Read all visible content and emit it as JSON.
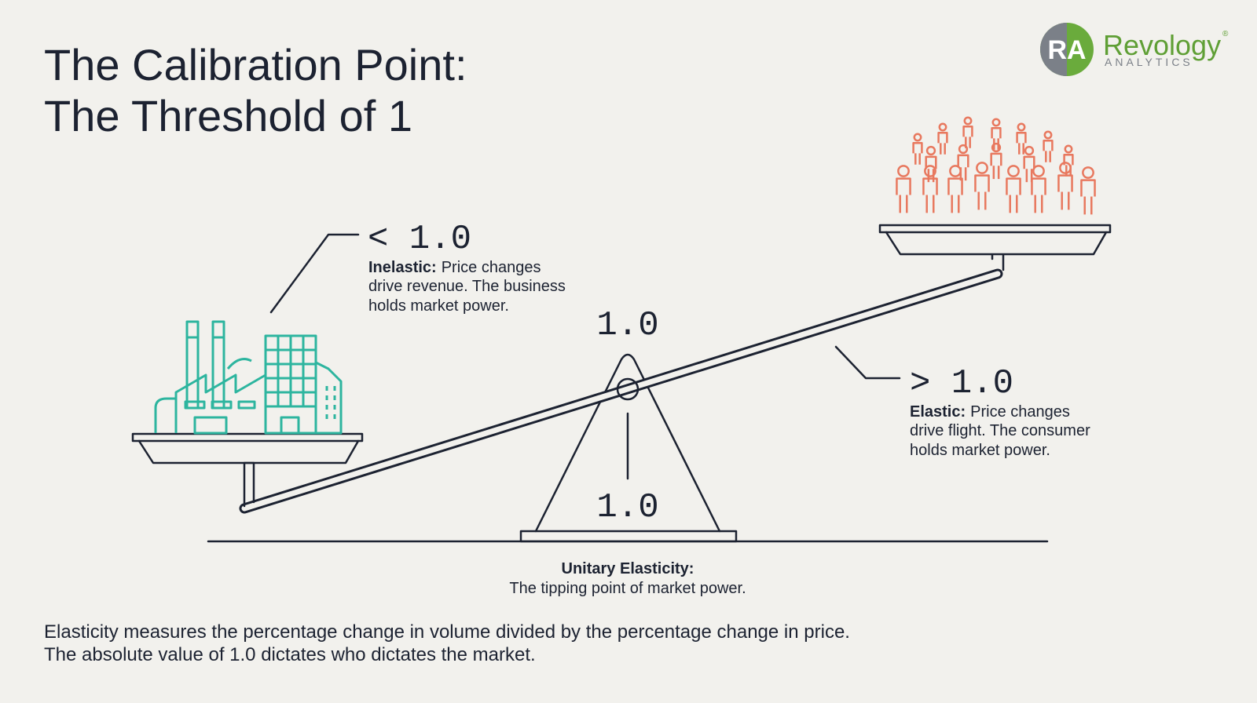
{
  "header": {
    "title_lines": [
      "The Calibration Point:",
      "The Threshold of 1"
    ]
  },
  "logo": {
    "monogram": "RA",
    "name": "Revology",
    "registered": "®",
    "tagline": "ANALYTICS"
  },
  "inelastic": {
    "value": "< 1.0",
    "term": "Inelastic:",
    "description_lines": [
      "Price changes",
      "drive revenue. The business",
      "holds market power."
    ]
  },
  "fulcrum": {
    "top_value": "1.0",
    "base_value": "1.0",
    "term": "Unitary Elasticity:",
    "description": "The tipping point of market power."
  },
  "elastic": {
    "value": "> 1.0",
    "term": "Elastic:",
    "description_lines": [
      "Price changes",
      "drive flight. The consumer",
      "holds market power."
    ]
  },
  "footer": {
    "lines": [
      "Elasticity measures the percentage change in volume divided by the percentage change in price.",
      "The absolute value of 1.0 dictates who dictates the market."
    ]
  }
}
